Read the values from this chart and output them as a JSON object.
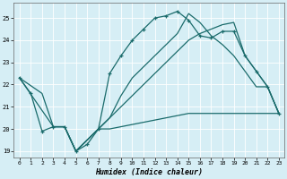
{
  "xlabel": "Humidex (Indice chaleur)",
  "xlim": [
    -0.5,
    23.5
  ],
  "ylim": [
    18.7,
    25.7
  ],
  "yticks": [
    19,
    20,
    21,
    22,
    23,
    24,
    25
  ],
  "xticks": [
    0,
    1,
    2,
    3,
    4,
    5,
    6,
    7,
    8,
    9,
    10,
    11,
    12,
    13,
    14,
    15,
    16,
    17,
    18,
    19,
    20,
    21,
    22,
    23
  ],
  "bg_color": "#d6eef5",
  "grid_color": "#ffffff",
  "line_color": "#1a6b6b",
  "line1_x": [
    0,
    1,
    2,
    3,
    4,
    5,
    6,
    7,
    8,
    9,
    10,
    11,
    12,
    13,
    14,
    15,
    16,
    17,
    18,
    19,
    20,
    21,
    22,
    23
  ],
  "line1_y": [
    22.3,
    21.6,
    19.9,
    20.1,
    20.1,
    19.0,
    19.3,
    20.0,
    22.5,
    23.3,
    24.0,
    24.5,
    25.0,
    25.1,
    25.3,
    24.9,
    24.2,
    24.1,
    24.4,
    24.4,
    23.3,
    22.6,
    21.9,
    20.7
  ],
  "line2_x": [
    0,
    2,
    3,
    4,
    5,
    7,
    8,
    9,
    10,
    11,
    12,
    13,
    14,
    15,
    16,
    17,
    18,
    19,
    20,
    21,
    22,
    23
  ],
  "line2_y": [
    22.3,
    21.6,
    20.1,
    20.1,
    19.0,
    20.0,
    20.5,
    21.0,
    21.5,
    22.0,
    22.5,
    23.0,
    23.5,
    24.0,
    24.3,
    24.5,
    24.7,
    24.8,
    23.3,
    22.6,
    21.9,
    20.7
  ],
  "line3_x": [
    3,
    4,
    5,
    7,
    8,
    9,
    10,
    11,
    12,
    13,
    14,
    15,
    16,
    17,
    18,
    19,
    20,
    21,
    22,
    23
  ],
  "line3_y": [
    20.1,
    20.1,
    19.0,
    20.0,
    20.0,
    20.1,
    20.2,
    20.3,
    20.4,
    20.5,
    20.6,
    20.7,
    20.7,
    20.7,
    20.7,
    20.7,
    20.7,
    20.7,
    20.7,
    20.7
  ],
  "line4_x": [
    0,
    3,
    4,
    5,
    7,
    8,
    9,
    10,
    11,
    12,
    13,
    14,
    15,
    16,
    17,
    18,
    19,
    20,
    21,
    22,
    23
  ],
  "line4_y": [
    22.3,
    20.1,
    20.1,
    19.0,
    20.0,
    20.5,
    21.5,
    22.3,
    22.8,
    23.3,
    23.8,
    24.3,
    25.2,
    24.8,
    24.2,
    23.8,
    23.3,
    22.6,
    21.9,
    21.9,
    20.7
  ]
}
